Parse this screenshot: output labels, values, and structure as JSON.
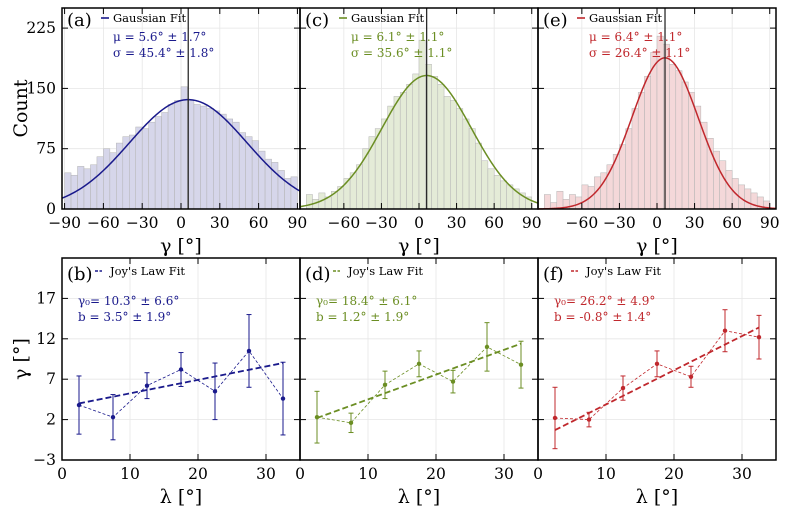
{
  "chart_data": [
    {
      "id": "a",
      "type": "bar",
      "panel_label": "(a)",
      "legend": "Gaussian Fit",
      "stats": [
        "μ =   5.6° ±  1.7°",
        "σ =  45.4° ±  1.8°"
      ],
      "xlabel": "γ [°]",
      "ylabel": "Count",
      "xlim": [
        -92,
        92
      ],
      "ylim": [
        0,
        250
      ],
      "xticks": [
        -90,
        -60,
        -30,
        0,
        30,
        60,
        90
      ],
      "yticks": [
        0,
        75,
        150,
        225
      ],
      "color": "#1a1a8c",
      "bin_width": 5,
      "bin_centers": [
        -87.5,
        -82.5,
        -77.5,
        -72.5,
        -67.5,
        -62.5,
        -57.5,
        -52.5,
        -47.5,
        -42.5,
        -37.5,
        -32.5,
        -27.5,
        -22.5,
        -17.5,
        -12.5,
        -7.5,
        -2.5,
        2.5,
        7.5,
        12.5,
        17.5,
        22.5,
        27.5,
        32.5,
        37.5,
        42.5,
        47.5,
        52.5,
        57.5,
        62.5,
        67.5,
        72.5,
        77.5,
        82.5,
        87.5
      ],
      "counts": [
        45,
        42,
        53,
        50,
        55,
        65,
        75,
        70,
        82,
        90,
        92,
        102,
        100,
        108,
        115,
        120,
        130,
        135,
        152,
        135,
        130,
        128,
        125,
        122,
        118,
        112,
        108,
        95,
        90,
        85,
        72,
        62,
        58,
        48,
        38,
        40
      ],
      "fit": {
        "amplitude": 136,
        "mu": 5.6,
        "sigma": 45.4
      },
      "vline": 5.6
    },
    {
      "id": "c",
      "type": "bar",
      "panel_label": "(c)",
      "legend": "Gaussian Fit",
      "stats": [
        "μ =   6.1° ±  1.1°",
        "σ =  35.6° ±  1.1°"
      ],
      "xlabel": "γ [°]",
      "xlim": [
        -95,
        95
      ],
      "ylim": [
        0,
        250
      ],
      "xticks": [
        -60,
        -30,
        0,
        30,
        60,
        90
      ],
      "yticks": [
        0,
        75,
        150,
        225
      ],
      "color": "#6b8e23",
      "bin_width": 5,
      "bin_centers": [
        -87.5,
        -82.5,
        -77.5,
        -72.5,
        -67.5,
        -62.5,
        -57.5,
        -52.5,
        -47.5,
        -42.5,
        -37.5,
        -32.5,
        -27.5,
        -22.5,
        -17.5,
        -12.5,
        -7.5,
        -2.5,
        2.5,
        7.5,
        12.5,
        17.5,
        22.5,
        27.5,
        32.5,
        37.5,
        42.5,
        47.5,
        52.5,
        57.5,
        62.5,
        67.5,
        72.5,
        77.5,
        82.5,
        87.5
      ],
      "counts": [
        18,
        12,
        20,
        15,
        22,
        28,
        38,
        45,
        55,
        75,
        90,
        100,
        112,
        128,
        140,
        145,
        155,
        168,
        210,
        180,
        165,
        155,
        140,
        135,
        125,
        112,
        100,
        82,
        60,
        50,
        42,
        35,
        30,
        25,
        20,
        15
      ],
      "fit": {
        "amplitude": 166,
        "mu": 6.1,
        "sigma": 35.6
      },
      "vline": 6.1
    },
    {
      "id": "e",
      "type": "bar",
      "panel_label": "(e)",
      "legend": "Gaussian Fit",
      "stats": [
        "μ =   6.4° ±  1.1°",
        "σ =  26.4° ±  1.1°"
      ],
      "xlabel": "γ [°]",
      "xlim": [
        -95,
        95
      ],
      "ylim": [
        0,
        250
      ],
      "xticks": [
        -60,
        -30,
        0,
        30,
        60,
        90
      ],
      "yticks": [
        0,
        75,
        150,
        225
      ],
      "color": "#c0282d",
      "bin_width": 5,
      "bin_centers": [
        -87.5,
        -82.5,
        -77.5,
        -72.5,
        -67.5,
        -62.5,
        -57.5,
        -52.5,
        -47.5,
        -42.5,
        -37.5,
        -32.5,
        -27.5,
        -22.5,
        -17.5,
        -12.5,
        -7.5,
        -2.5,
        2.5,
        7.5,
        12.5,
        17.5,
        22.5,
        27.5,
        32.5,
        37.5,
        42.5,
        47.5,
        52.5,
        57.5,
        62.5,
        67.5,
        72.5,
        77.5,
        82.5,
        87.5
      ],
      "counts": [
        18,
        8,
        22,
        12,
        18,
        15,
        30,
        28,
        40,
        45,
        55,
        68,
        80,
        100,
        125,
        145,
        165,
        195,
        215,
        205,
        180,
        172,
        158,
        145,
        128,
        108,
        88,
        72,
        60,
        48,
        38,
        30,
        25,
        20,
        15,
        10
      ],
      "fit": {
        "amplitude": 188,
        "mu": 6.4,
        "sigma": 26.4
      },
      "vline": 6.4
    },
    {
      "id": "b",
      "type": "scatter",
      "panel_label": "(b)",
      "legend": "Joy's Law Fit",
      "stats": [
        "γ₀= 10.3° ± 6.6°",
        "b =   3.5° ± 1.9°"
      ],
      "xlabel": "λ [°]",
      "ylabel": "γ [°]",
      "xlim": [
        0,
        35
      ],
      "ylim": [
        -3,
        22
      ],
      "xticks": [
        0,
        10,
        20,
        30
      ],
      "yticks": [
        -3,
        2,
        7,
        12,
        17
      ],
      "color": "#1a1a8c",
      "x": [
        2.5,
        7.5,
        12.5,
        17.5,
        22.5,
        27.5,
        32.5
      ],
      "y": [
        3.8,
        2.3,
        6.2,
        8.2,
        5.5,
        10.5,
        4.6
      ],
      "yerr": [
        3.6,
        2.8,
        1.6,
        2.1,
        3.5,
        4.5,
        4.5
      ],
      "fit_x": [
        2.5,
        32.5
      ],
      "fit_y": [
        4.0,
        9.0
      ]
    },
    {
      "id": "d",
      "type": "scatter",
      "panel_label": "(d)",
      "legend": "Joy's Law Fit",
      "stats": [
        "γ₀= 18.4° ± 6.1°",
        "b =   1.2° ± 1.9°"
      ],
      "xlabel": "λ [°]",
      "xlim": [
        0,
        35
      ],
      "ylim": [
        -3,
        22
      ],
      "xticks": [
        0,
        10,
        20,
        30
      ],
      "yticks": [
        -3,
        2,
        7,
        12,
        17
      ],
      "color": "#6b8e23",
      "x": [
        2.5,
        7.5,
        12.5,
        17.5,
        22.5,
        27.5,
        32.5
      ],
      "y": [
        2.3,
        1.6,
        6.3,
        8.9,
        6.7,
        11.0,
        8.8
      ],
      "yerr": [
        3.2,
        1.2,
        1.7,
        1.6,
        1.4,
        3.0,
        2.9
      ],
      "fit_x": [
        2.5,
        32.5
      ],
      "fit_y": [
        2.2,
        11.4
      ]
    },
    {
      "id": "f",
      "type": "scatter",
      "panel_label": "(f)",
      "legend": "Joy's Law Fit",
      "stats": [
        "γ₀= 26.2° ± 4.9°",
        "b =  -0.8° ± 1.4°"
      ],
      "xlabel": "λ [°]",
      "xlim": [
        0,
        35
      ],
      "ylim": [
        -3,
        22
      ],
      "xticks": [
        0,
        10,
        20,
        30
      ],
      "yticks": [
        -3,
        2,
        7,
        12,
        17
      ],
      "color": "#c0282d",
      "x": [
        2.5,
        7.5,
        12.5,
        17.5,
        22.5,
        27.5,
        32.5
      ],
      "y": [
        2.2,
        2.0,
        5.9,
        8.9,
        7.3,
        13.0,
        12.2
      ],
      "yerr": [
        3.8,
        0.9,
        1.5,
        1.6,
        1.3,
        2.6,
        2.7
      ],
      "fit_x": [
        2.5,
        32.5
      ],
      "fit_y": [
        0.7,
        13.4
      ]
    }
  ]
}
